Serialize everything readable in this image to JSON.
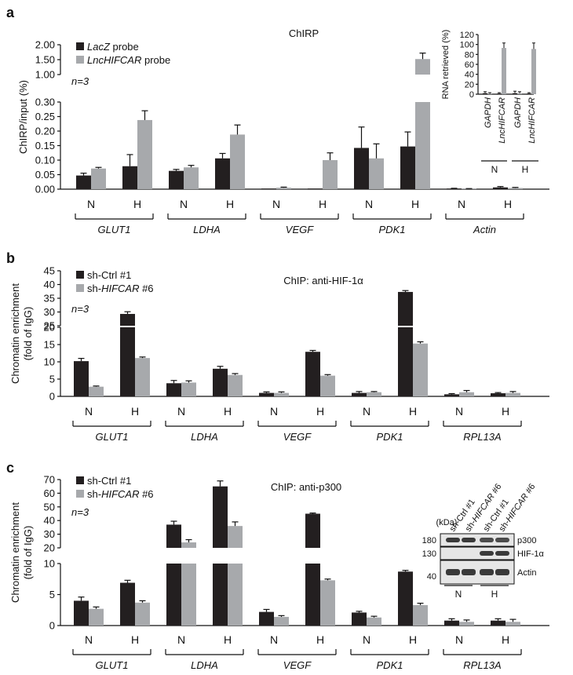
{
  "colors": {
    "dark": "#231f20",
    "light": "#a7a9ac",
    "blot_bg": "#e6e6e6",
    "band": "#3a3a3a"
  },
  "chart_data": [
    {
      "panel": "a",
      "type": "bar",
      "title": "ChIRP",
      "ylabel": "ChIRP/input (%)",
      "n_label": "n=3",
      "legend": {
        "position": "top-left",
        "entries": [
          {
            "italic": "LacZ",
            "rest": " probe"
          },
          {
            "italic": "LncHIFCAR",
            "rest": " probe"
          }
        ]
      },
      "y_ticks_lower": [
        "0.00",
        "0.05",
        "0.10",
        "0.15",
        "0.20",
        "0.25",
        "0.30"
      ],
      "y_ticks_upper": [
        "1.00",
        "1.50",
        "2.00"
      ],
      "y_split": {
        "lower": [
          0,
          0.3
        ],
        "upper": [
          1.0,
          2.0
        ]
      },
      "categories": [
        "N",
        "H",
        "N",
        "H",
        "N",
        "H",
        "N",
        "H",
        "N",
        "H"
      ],
      "groups": [
        "GLUT1",
        "LDHA",
        "VEGF",
        "PDK1",
        "Actin"
      ],
      "series": [
        {
          "name": "LacZ probe",
          "values": [
            0.047,
            0.079,
            0.063,
            0.106,
            0.0,
            0.0,
            0.142,
            0.147,
            0.002,
            0.006
          ],
          "errors": [
            0.008,
            0.04,
            0.005,
            0.017,
            0.0,
            0.0,
            0.072,
            0.05,
            0.001,
            0.003
          ]
        },
        {
          "name": "LncHIFCAR probe",
          "values": [
            0.071,
            0.238,
            0.075,
            0.188,
            0.005,
            0.1,
            0.106,
            1.52,
            0.001,
            0.004
          ],
          "errors": [
            0.004,
            0.032,
            0.007,
            0.033,
            0.002,
            0.025,
            0.05,
            0.2,
            0.001,
            0.002
          ]
        }
      ],
      "inset": {
        "type": "bar",
        "ylabel": "RNA retrieved (%)",
        "y_ticks": [
          "0",
          "20",
          "40",
          "60",
          "80",
          "100",
          "120"
        ],
        "ylim": [
          0,
          120
        ],
        "categories": [
          "GAPDH",
          "LncHIFCAR",
          "GAPDH",
          "LncHIFCAR"
        ],
        "conditions": [
          "N",
          "H"
        ],
        "series": [
          {
            "name": "LacZ probe",
            "values": [
              2,
              1,
              2,
              1
            ],
            "errors": [
              3,
              2,
              4,
              2
            ]
          },
          {
            "name": "LncHIFCAR probe",
            "values": [
              1,
              93,
              2,
              91
            ],
            "errors": [
              2,
              10,
              3,
              12
            ]
          }
        ]
      }
    },
    {
      "panel": "b",
      "type": "bar",
      "title": "ChIP: anti-HIF-1α",
      "ylabel": "Chromatin enrichment (fold of IgG)",
      "ylabel_lines": [
        "Chromatin enrichment",
        "(fold of IgG)"
      ],
      "n_label": "n=3",
      "legend": {
        "position": "top-left",
        "entries": [
          {
            "pre": "sh-Ctrl #1"
          },
          {
            "pre": "sh-",
            "italic": "HIFCAR",
            "rest": " #6"
          }
        ]
      },
      "y_ticks_lower": [
        "0",
        "5",
        "10",
        "15",
        "20"
      ],
      "y_ticks_upper": [
        "25",
        "30",
        "35",
        "40",
        "45"
      ],
      "y_split": {
        "lower": [
          0,
          20
        ],
        "upper": [
          25,
          45
        ]
      },
      "categories": [
        "N",
        "H",
        "N",
        "H",
        "N",
        "H",
        "N",
        "H",
        "N",
        "H"
      ],
      "groups": [
        "GLUT1",
        "LDHA",
        "VEGF",
        "PDK1",
        "RPL13A"
      ],
      "series": [
        {
          "name": "sh-Ctrl #1",
          "values": [
            10.2,
            29.3,
            3.8,
            8.0,
            1.0,
            12.9,
            1.0,
            37.3,
            0.6,
            0.9
          ],
          "errors": [
            0.8,
            0.8,
            0.8,
            0.7,
            0.3,
            0.4,
            0.4,
            0.5,
            0.2,
            0.2
          ]
        },
        {
          "name": "sh-HIFCAR #6",
          "values": [
            2.8,
            11.1,
            4.0,
            6.2,
            1.0,
            6.0,
            1.2,
            15.3,
            1.2,
            1.0
          ],
          "errors": [
            0.2,
            0.3,
            0.5,
            0.4,
            0.3,
            0.3,
            0.2,
            0.5,
            0.5,
            0.4
          ]
        }
      ]
    },
    {
      "panel": "c",
      "type": "bar",
      "title": "ChIP: anti-p300",
      "ylabel": "Chromatin enrichment (fold of IgG)",
      "ylabel_lines": [
        "Chromatin enrichment",
        "(fold of IgG)"
      ],
      "n_label": "n=3",
      "legend": {
        "position": "top-left",
        "entries": [
          {
            "pre": "sh-Ctrl #1"
          },
          {
            "pre": "sh-",
            "italic": "HIFCAR",
            "rest": " #6"
          }
        ]
      },
      "y_ticks_lower": [
        "0",
        "5",
        "10"
      ],
      "y_ticks_upper": [
        "20",
        "30",
        "40",
        "50",
        "60",
        "70"
      ],
      "y_split": {
        "lower": [
          0,
          10
        ],
        "upper": [
          20,
          70
        ]
      },
      "categories": [
        "N",
        "H",
        "N",
        "H",
        "N",
        "H",
        "N",
        "H",
        "N",
        "H"
      ],
      "groups": [
        "GLUT1",
        "LDHA",
        "VEGF",
        "PDK1",
        "RPL13A"
      ],
      "series": [
        {
          "name": "sh-Ctrl #1",
          "values": [
            4.0,
            6.9,
            37.0,
            65.0,
            2.2,
            45.0,
            2.1,
            8.7,
            0.8,
            0.8
          ],
          "errors": [
            0.6,
            0.4,
            2.5,
            4.0,
            0.4,
            0.5,
            0.2,
            0.2,
            0.3,
            0.3
          ]
        },
        {
          "name": "sh-HIFCAR #6",
          "values": [
            2.7,
            3.7,
            24.0,
            36.0,
            1.4,
            7.3,
            1.3,
            3.3,
            0.6,
            0.6
          ],
          "errors": [
            0.3,
            0.3,
            2.0,
            3.0,
            0.2,
            0.2,
            0.2,
            0.3,
            0.3,
            0.4
          ]
        }
      ],
      "blot": {
        "unit": "(kDa)",
        "markers": [
          "180",
          "130",
          "40"
        ],
        "proteins": [
          "p300",
          "HIF-1α",
          "Actin"
        ],
        "lanes": [
          {
            "pre": "sh-Ctrl #1"
          },
          {
            "pre": "sh-",
            "italic": "HIFCAR",
            "rest": " #6"
          },
          {
            "pre": "sh-Ctrl #1"
          },
          {
            "pre": "sh-",
            "italic": "HIFCAR",
            "rest": " #6"
          }
        ],
        "conditions": [
          "N",
          "H"
        ],
        "band_intensity": [
          [
            1,
            1,
            0.9,
            0.9
          ],
          [
            0,
            0,
            1,
            1
          ],
          [
            1,
            1,
            1,
            1
          ]
        ]
      }
    }
  ]
}
